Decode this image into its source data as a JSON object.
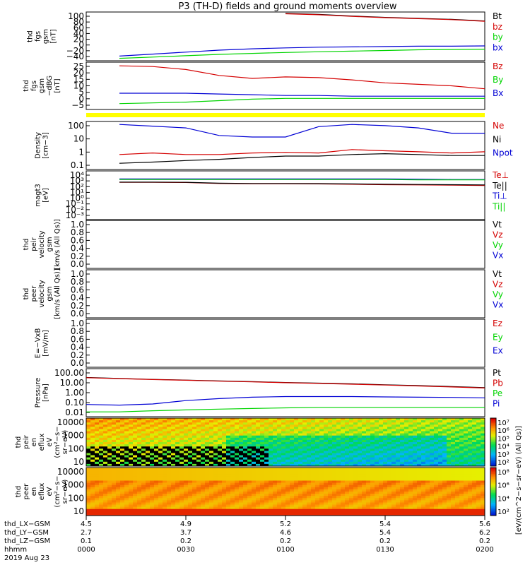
{
  "title": "P3 (TH-D) fields and ground moments overview",
  "colors": {
    "black": "#000000",
    "red": "#d40000",
    "green": "#00d400",
    "blue": "#0000d4",
    "yellow": "#ffff00"
  },
  "chart_data": [
    {
      "type": "line",
      "panel": "fgs-gsm-nT",
      "ylabel": [
        "thd",
        "fgs",
        "gsm",
        "[nT]"
      ],
      "yticks": [
        "100",
        "80",
        "60",
        "40",
        "20",
        "0",
        "−20",
        "−40"
      ],
      "ylim": [
        -40,
        100
      ],
      "legend": [
        {
          "name": "Bt",
          "color": "#000000"
        },
        {
          "name": "bz",
          "color": "#d40000"
        },
        {
          "name": "by",
          "color": "#00d400"
        },
        {
          "name": "bx",
          "color": "#0000d4"
        }
      ],
      "x_min": [
        0,
        10,
        20,
        30,
        40,
        50,
        60,
        70,
        80,
        90,
        100,
        110,
        120
      ],
      "series": [
        {
          "name": "Bt",
          "values": [
            null,
            null,
            null,
            null,
            null,
            null,
            100,
            97,
            92,
            88,
            85,
            82,
            77
          ]
        },
        {
          "name": "bz",
          "values": [
            null,
            null,
            null,
            null,
            null,
            null,
            99,
            96,
            91,
            87,
            84,
            81,
            76
          ]
        },
        {
          "name": "by",
          "values": [
            null,
            -37,
            -33,
            -29,
            -25,
            -22,
            -19,
            -17,
            -15,
            -13,
            -11,
            -10,
            -9
          ]
        },
        {
          "name": "bx",
          "values": [
            null,
            -30,
            -24,
            -18,
            -12,
            -8,
            -5,
            -3,
            -2,
            -1,
            0,
            0,
            1
          ]
        }
      ]
    },
    {
      "type": "line",
      "panel": "fgs-gsm-dbg-nT",
      "ylabel": [
        "thd",
        "fgs",
        "gsm",
        "−dBG",
        "[nT]"
      ],
      "yticks": [
        "25",
        "20",
        "15",
        "10",
        "5",
        "0",
        "−5"
      ],
      "ylim": [
        -5,
        25
      ],
      "legend": [
        {
          "name": "Bz",
          "color": "#d40000"
        },
        {
          "name": "By",
          "color": "#00d400"
        },
        {
          "name": "Bx",
          "color": "#0000d4"
        }
      ],
      "x_min": [
        0,
        10,
        20,
        30,
        40,
        50,
        60,
        70,
        80,
        90,
        100,
        110,
        120
      ],
      "series": [
        {
          "name": "Bz",
          "values": [
            null,
            23.5,
            23,
            21,
            17,
            15,
            16,
            15.5,
            14,
            12,
            11,
            10,
            8
          ]
        },
        {
          "name": "By",
          "values": [
            null,
            -2,
            -1.5,
            -1,
            0,
            1,
            1.5,
            1.5,
            1.5,
            1.5,
            1.5,
            1.5,
            1.5
          ]
        },
        {
          "name": "Bx",
          "values": [
            null,
            5,
            5,
            5,
            4.5,
            4,
            3.5,
            3.5,
            3,
            3,
            3,
            3,
            3
          ]
        }
      ]
    },
    {
      "type": "line",
      "panel": "density",
      "ylabel": [
        "Density",
        "[cm−3]"
      ],
      "yticks": [
        "100",
        "10",
        "1",
        "0.1"
      ],
      "ylim": [
        0.05,
        200
      ],
      "log": true,
      "legend": [
        {
          "name": "Ne",
          "color": "#d40000"
        },
        {
          "name": "Ni",
          "color": "#000000"
        },
        {
          "name": "Npot",
          "color": "#0000d4"
        }
      ],
      "x_min": [
        0,
        10,
        20,
        30,
        40,
        50,
        60,
        70,
        80,
        90,
        100,
        110,
        120
      ],
      "series": [
        {
          "name": "Ne",
          "values": [
            null,
            0.6,
            0.8,
            0.6,
            0.6,
            0.8,
            0.9,
            0.8,
            1.5,
            1.2,
            1.0,
            0.8,
            1.0
          ]
        },
        {
          "name": "Ni",
          "values": [
            null,
            0.12,
            0.15,
            0.2,
            0.25,
            0.35,
            0.45,
            0.45,
            0.6,
            0.7,
            0.6,
            0.5,
            0.5
          ]
        },
        {
          "name": "Npot",
          "values": [
            null,
            150,
            110,
            80,
            20,
            15,
            15,
            100,
            150,
            120,
            80,
            30,
            30
          ]
        }
      ]
    },
    {
      "type": "line",
      "panel": "temperature",
      "ylabel": [
        "magt3",
        "[eV]"
      ],
      "yticks": [
        "10⁴",
        "10³",
        "10²",
        "10¹",
        "10⁰",
        "10⁻¹",
        "10⁻²",
        "10⁻³"
      ],
      "ylim": [
        0.001,
        10000
      ],
      "log": true,
      "legend": [
        {
          "name": "Te⊥",
          "color": "#d40000"
        },
        {
          "name": "Te||",
          "color": "#000000"
        },
        {
          "name": "Ti⊥",
          "color": "#0000d4"
        },
        {
          "name": "Ti||",
          "color": "#00d400"
        }
      ],
      "x_min": [
        0,
        10,
        20,
        30,
        40,
        50,
        60,
        70,
        80,
        90,
        100,
        110,
        120
      ],
      "series": [
        {
          "name": "Te⊥",
          "values": [
            null,
            300,
            300,
            280,
            200,
            180,
            180,
            170,
            150,
            130,
            120,
            110,
            100
          ]
        },
        {
          "name": "Te||",
          "values": [
            null,
            320,
            320,
            300,
            220,
            200,
            200,
            190,
            170,
            150,
            140,
            130,
            120
          ]
        },
        {
          "name": "Ti⊥",
          "values": [
            null,
            1000,
            1000,
            1000,
            1000,
            1000,
            1000,
            1000,
            1000,
            1000,
            900,
            800,
            800
          ]
        },
        {
          "name": "Ti||",
          "values": [
            null,
            800,
            800,
            800,
            800,
            800,
            800,
            800,
            800,
            800,
            700,
            700,
            700
          ]
        }
      ]
    },
    {
      "type": "line",
      "panel": "peir-velocity",
      "ylabel": [
        "thd",
        "peir",
        "velocity",
        "gsm",
        "[km/s (All Qs)]"
      ],
      "yticks": [
        "1.0",
        "0.8",
        "0.6",
        "0.4",
        "0.2",
        "0.0"
      ],
      "ylim": [
        0,
        1
      ],
      "legend": [
        {
          "name": "Vt",
          "color": "#000000"
        },
        {
          "name": "Vz",
          "color": "#d40000"
        },
        {
          "name": "Vy",
          "color": "#00d400"
        },
        {
          "name": "Vx",
          "color": "#0000d4"
        }
      ],
      "series": []
    },
    {
      "type": "line",
      "panel": "peer-velocity",
      "ylabel": [
        "thd",
        "peer",
        "velocity",
        "gsm",
        "[km/s (All Qs)]"
      ],
      "yticks": [
        "1.0",
        "0.8",
        "0.6",
        "0.4",
        "0.2",
        "0.0"
      ],
      "ylim": [
        0,
        1
      ],
      "legend": [
        {
          "name": "Vt",
          "color": "#000000"
        },
        {
          "name": "Vz",
          "color": "#d40000"
        },
        {
          "name": "Vy",
          "color": "#00d400"
        },
        {
          "name": "Vx",
          "color": "#0000d4"
        }
      ],
      "series": []
    },
    {
      "type": "line",
      "panel": "efield",
      "ylabel": [
        "E=−VxB",
        "[mV/m]"
      ],
      "yticks": [
        "1.0",
        "0.8",
        "0.6",
        "0.4",
        "0.2",
        "0.0"
      ],
      "ylim": [
        0,
        1
      ],
      "legend": [
        {
          "name": "Ez",
          "color": "#d40000"
        },
        {
          "name": "Ey",
          "color": "#00d400"
        },
        {
          "name": "Ex",
          "color": "#0000d4"
        }
      ],
      "series": []
    },
    {
      "type": "line",
      "panel": "pressure",
      "ylabel": [
        "Pressure",
        "[nPa]"
      ],
      "yticks": [
        "100.00",
        "10.00",
        "1.00",
        "0.10",
        "0.01"
      ],
      "ylim": [
        0.01,
        100
      ],
      "log": true,
      "legend": [
        {
          "name": "Pt",
          "color": "#000000"
        },
        {
          "name": "Pb",
          "color": "#d40000"
        },
        {
          "name": "Pe",
          "color": "#00d400"
        },
        {
          "name": "Pi",
          "color": "#0000d4"
        }
      ],
      "x_min": [
        0,
        10,
        20,
        30,
        40,
        50,
        60,
        70,
        80,
        90,
        100,
        110,
        120
      ],
      "series": [
        {
          "name": "Pt",
          "values": [
            22,
            18,
            15,
            13,
            11,
            9.5,
            8,
            7,
            6,
            5,
            4.2,
            3.5,
            2.8
          ]
        },
        {
          "name": "Pb",
          "values": [
            21,
            17.5,
            14.5,
            12.5,
            10.5,
            9,
            7.6,
            6.6,
            5.6,
            4.7,
            3.9,
            3.2,
            2.6
          ]
        },
        {
          "name": "Pe",
          "values": [
            0.02,
            0.02,
            0.025,
            0.03,
            0.035,
            0.04,
            0.045,
            0.05,
            0.05,
            0.05,
            0.05,
            0.05,
            0.05
          ]
        },
        {
          "name": "Pi",
          "values": [
            0.09,
            0.08,
            0.1,
            0.2,
            0.3,
            0.4,
            0.45,
            0.45,
            0.45,
            0.42,
            0.4,
            0.38,
            0.35
          ]
        }
      ]
    },
    {
      "type": "heatmap",
      "panel": "peir-eflux",
      "ylabel": [
        "thd",
        "peir",
        "en",
        "eflux",
        "eV",
        "(cm²−s−",
        "sr−eV)"
      ],
      "yticks": [
        "10000",
        "1000",
        "100",
        "10"
      ],
      "ylim": [
        5,
        30000
      ],
      "log": true,
      "colorbar_label": "[eV/(cm^2−s−sr−eV) (All Qs)]",
      "colorbar_ticks": [
        "10⁷",
        "10⁶",
        "10⁵",
        "10⁴",
        "10³",
        "10²"
      ],
      "colorbar_range": [
        100,
        10000000
      ]
    },
    {
      "type": "heatmap",
      "panel": "peer-eflux",
      "ylabel": [
        "thd",
        "peer",
        "en",
        "eflux",
        "eV",
        "(cm²−s−",
        "sr−eV)"
      ],
      "yticks": [
        "10000",
        "1000",
        "100",
        "10"
      ],
      "ylim": [
        5,
        30000
      ],
      "log": true,
      "colorbar_label": "[eV/(cm^2−s−sr−eV) (All Qs)]",
      "colorbar_ticks": [
        "10⁸",
        "10⁶",
        "10⁴",
        "10²"
      ],
      "colorbar_range": [
        10,
        100000000
      ]
    }
  ],
  "xaxis": {
    "row_labels": [
      "thd_LX−GSM",
      "thd_LY−GSM",
      "thd_LZ−GSM",
      "hhmm",
      "2019 Aug 23"
    ],
    "columns": [
      {
        "lx": "4.5",
        "ly": "2.7",
        "lz": "0.1",
        "hhmm": "0000"
      },
      {
        "lx": "4.9",
        "ly": "3.7",
        "lz": "0.2",
        "hhmm": "0030"
      },
      {
        "lx": "5.2",
        "ly": "4.6",
        "lz": "0.2",
        "hhmm": "0100"
      },
      {
        "lx": "5.4",
        "ly": "5.4",
        "lz": "0.2",
        "hhmm": "0130"
      },
      {
        "lx": "5.6",
        "ly": "6.2",
        "lz": "0.2",
        "hhmm": "0200"
      }
    ]
  }
}
